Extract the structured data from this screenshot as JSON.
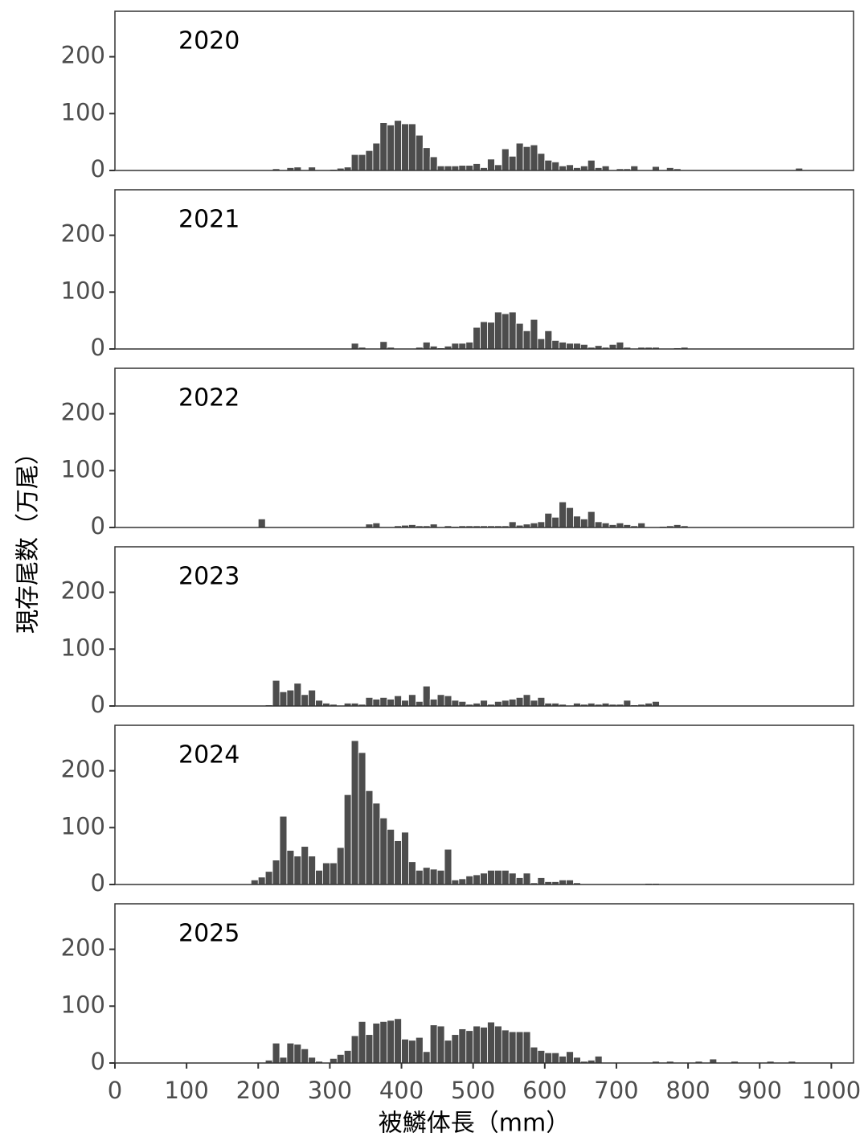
{
  "chart_data": {
    "type": "histogram",
    "xlabel": "被鱗体長（mm）",
    "ylabel": "現存尾数（万尾）",
    "xlim": [
      0,
      1031
    ],
    "xticks": [
      0,
      100,
      200,
      300,
      400,
      500,
      600,
      700,
      800,
      900,
      1000
    ],
    "ylim": [
      0,
      280
    ],
    "yticks": [
      0,
      100,
      200
    ],
    "bins": [
      190,
      200,
      210,
      220,
      230,
      240,
      250,
      260,
      270,
      280,
      290,
      300,
      310,
      320,
      330,
      340,
      350,
      360,
      370,
      380,
      390,
      400,
      410,
      420,
      430,
      440,
      450,
      460,
      470,
      480,
      490,
      500,
      510,
      520,
      530,
      540,
      550,
      560,
      570,
      580,
      590,
      600,
      610,
      620,
      630,
      640,
      650,
      660,
      670,
      680,
      690,
      700,
      710,
      720,
      730,
      740,
      750,
      760,
      770,
      780,
      790,
      800,
      810,
      820,
      830,
      840,
      850,
      860,
      870,
      880,
      890,
      900,
      910,
      920,
      930,
      940,
      950,
      960
    ],
    "series": [
      {
        "name": "2020",
        "color": "#4d4d4d",
        "values": [
          0,
          0,
          0,
          3,
          0,
          5,
          6,
          0,
          6,
          0,
          1,
          2,
          4,
          6,
          28,
          28,
          35,
          48,
          84,
          80,
          88,
          82,
          82,
          62,
          40,
          24,
          8,
          8,
          8,
          9,
          9,
          12,
          5,
          20,
          10,
          38,
          25,
          48,
          42,
          45,
          30,
          18,
          15,
          8,
          10,
          5,
          8,
          18,
          5,
          8,
          0,
          3,
          3,
          8,
          0,
          0,
          7,
          0,
          5,
          3,
          0,
          0,
          0,
          0,
          0,
          1,
          0,
          0,
          0,
          0,
          0,
          1,
          0,
          0,
          0,
          0,
          4
        ]
      },
      {
        "name": "2021",
        "color": "#4d4d4d",
        "values": [
          0,
          0,
          0,
          0,
          0,
          0,
          0,
          0,
          0,
          0,
          0,
          0,
          0,
          0,
          10,
          3,
          0,
          0,
          13,
          3,
          0,
          0,
          0,
          3,
          12,
          5,
          2,
          5,
          10,
          10,
          12,
          38,
          48,
          47,
          65,
          62,
          65,
          45,
          32,
          52,
          18,
          32,
          15,
          12,
          10,
          10,
          8,
          3,
          6,
          3,
          8,
          12,
          3,
          0,
          3,
          3,
          3,
          0,
          1,
          2,
          3,
          1,
          0,
          0,
          0,
          0,
          0,
          0,
          0,
          0,
          0,
          0,
          0,
          0,
          0,
          0,
          0
        ]
      },
      {
        "name": "2022",
        "color": "#4d4d4d",
        "values": [
          0,
          15,
          0,
          0,
          0,
          0,
          0,
          0,
          0,
          0,
          0,
          0,
          0,
          0,
          0,
          0,
          6,
          8,
          0,
          0,
          3,
          4,
          5,
          3,
          3,
          6,
          0,
          3,
          2,
          3,
          3,
          3,
          3,
          3,
          3,
          3,
          10,
          4,
          6,
          8,
          10,
          25,
          18,
          45,
          35,
          20,
          15,
          28,
          10,
          8,
          5,
          8,
          5,
          3,
          8,
          0,
          0,
          2,
          3,
          5,
          3,
          0,
          0,
          0,
          0,
          0,
          0,
          0,
          0,
          0,
          0,
          0,
          0,
          0,
          0,
          0,
          0
        ]
      },
      {
        "name": "2023",
        "color": "#4d4d4d",
        "values": [
          0,
          0,
          2,
          45,
          25,
          28,
          40,
          20,
          28,
          10,
          5,
          3,
          1,
          5,
          5,
          3,
          15,
          12,
          15,
          12,
          18,
          10,
          20,
          8,
          35,
          12,
          20,
          18,
          10,
          8,
          3,
          5,
          10,
          3,
          8,
          10,
          12,
          15,
          20,
          10,
          15,
          5,
          5,
          3,
          1,
          5,
          3,
          5,
          3,
          5,
          3,
          3,
          10,
          2,
          3,
          5,
          8,
          1,
          1,
          0,
          1,
          0,
          0,
          0,
          0,
          0,
          0,
          0,
          0,
          0,
          0,
          0,
          0,
          0,
          0,
          0,
          0
        ]
      },
      {
        "name": "2024",
        "color": "#4d4d4d",
        "values": [
          8,
          13,
          23,
          43,
          120,
          60,
          50,
          67,
          50,
          25,
          38,
          38,
          65,
          158,
          253,
          232,
          165,
          143,
          117,
          97,
          77,
          92,
          40,
          25,
          30,
          27,
          25,
          62,
          8,
          10,
          15,
          17,
          20,
          25,
          25,
          25,
          20,
          12,
          20,
          3,
          12,
          5,
          5,
          8,
          8,
          3,
          1,
          1,
          1,
          1,
          1,
          1,
          1,
          0,
          1,
          2,
          2,
          1,
          1,
          0,
          1,
          1,
          1,
          0,
          0,
          1,
          0,
          0,
          0,
          1,
          0,
          0,
          0,
          0,
          0,
          0,
          0
        ]
      },
      {
        "name": "2025",
        "color": "#4d4d4d",
        "values": [
          0,
          0,
          5,
          35,
          10,
          35,
          33,
          25,
          10,
          3,
          1,
          8,
          15,
          22,
          48,
          73,
          50,
          70,
          73,
          75,
          78,
          42,
          40,
          45,
          20,
          67,
          65,
          40,
          50,
          60,
          57,
          65,
          63,
          72,
          65,
          58,
          55,
          55,
          55,
          28,
          22,
          18,
          18,
          12,
          20,
          10,
          3,
          5,
          12,
          0,
          0,
          0,
          0,
          0,
          0,
          0,
          3,
          0,
          3,
          0,
          0,
          0,
          3,
          0,
          7,
          0,
          0,
          3,
          0,
          0,
          0,
          0,
          3,
          0,
          0,
          3,
          0
        ]
      }
    ]
  }
}
